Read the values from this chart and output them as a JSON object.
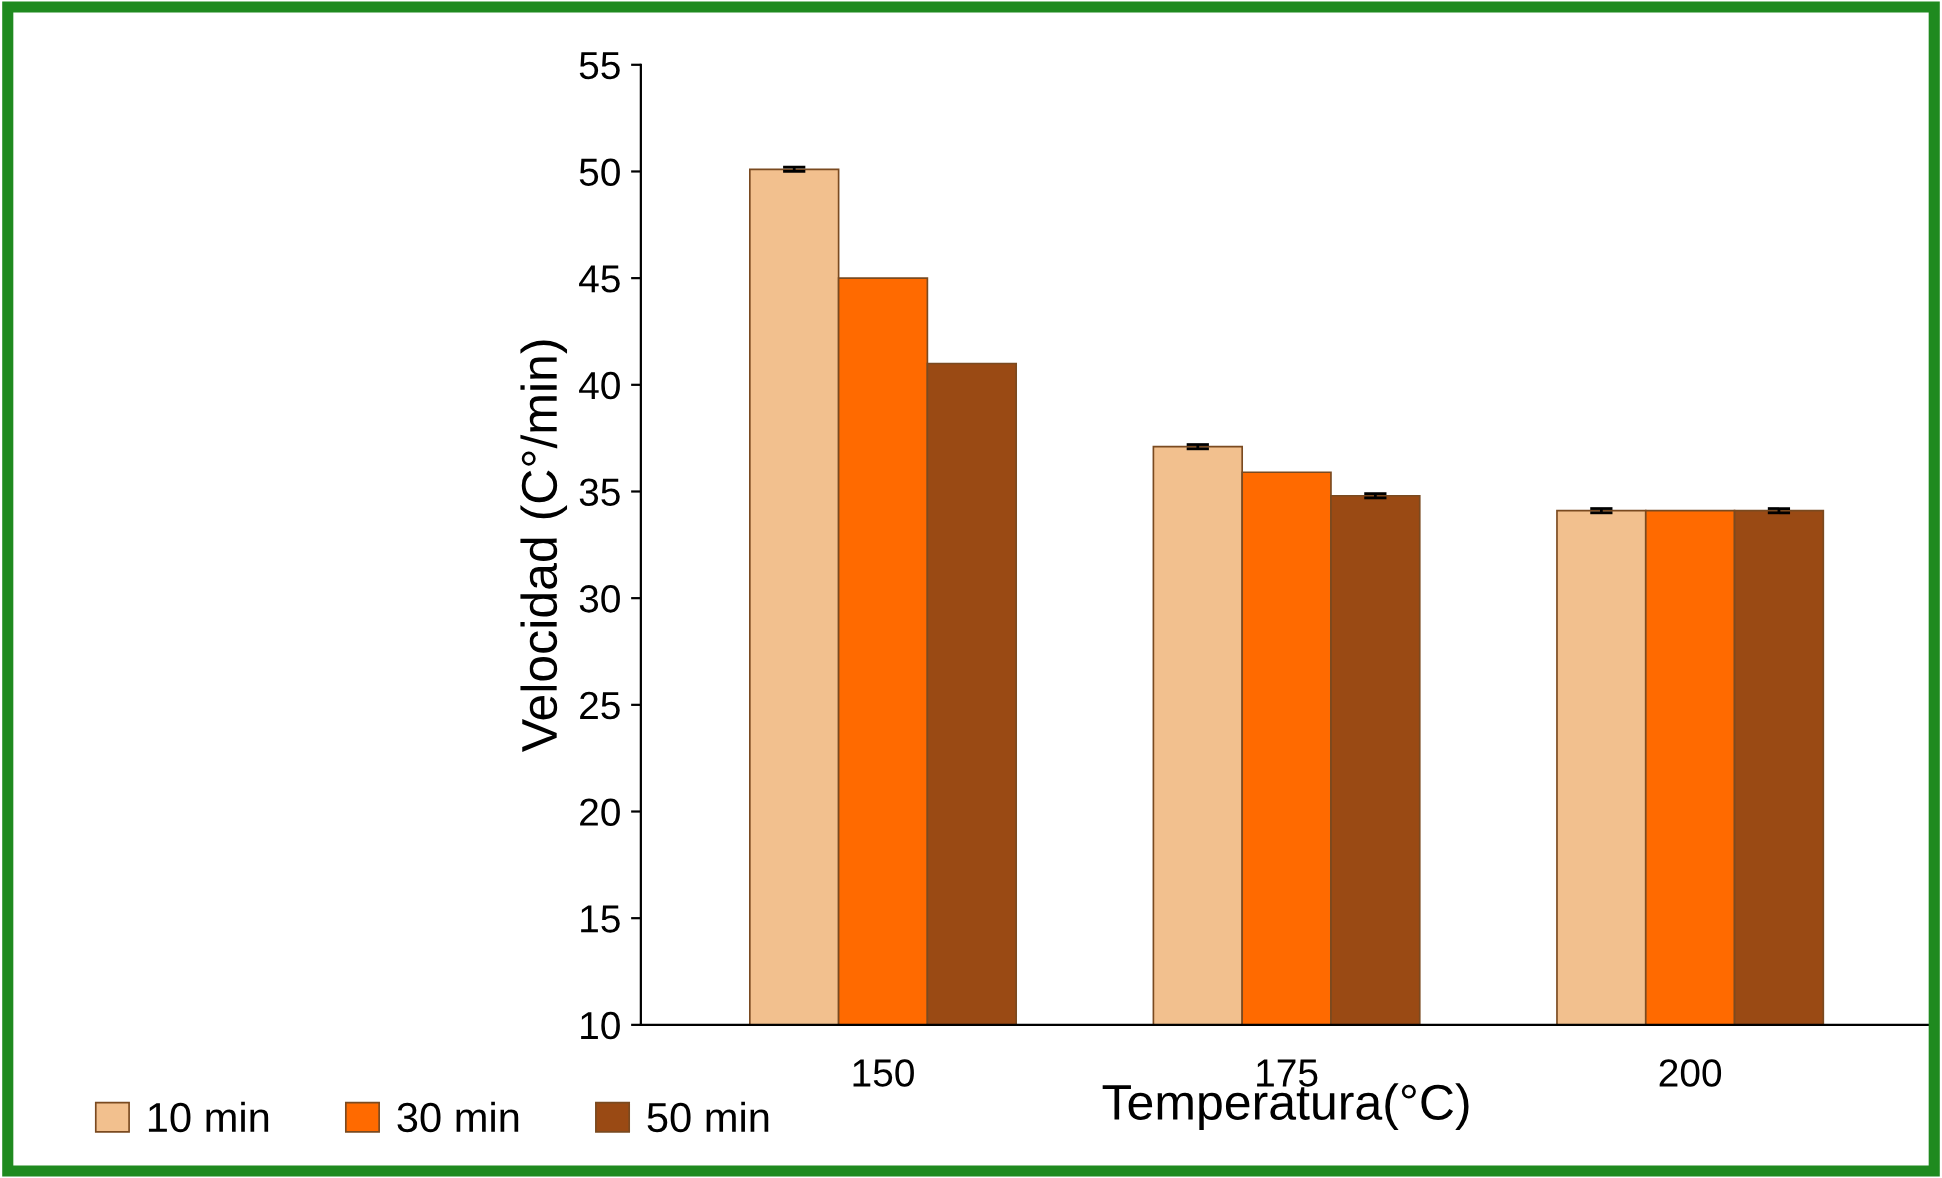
{
  "chart_data": {
    "type": "bar",
    "xlabel": "Temperatura(°C)",
    "ylabel": "Velocidad (C°/min)",
    "categories": [
      "150",
      "175",
      "200"
    ],
    "series": [
      {
        "name": "10 min",
        "color": "#f2c08e",
        "values": [
          50.1,
          37.1,
          34.1
        ],
        "errors": [
          0.1,
          0.1,
          0.1
        ]
      },
      {
        "name": "30 min",
        "color": "#ff6a00",
        "values": [
          45.0,
          35.9,
          34.1
        ]
      },
      {
        "name": "50 min",
        "color": "#9a4a14",
        "values": [
          41.0,
          34.8,
          34.1
        ],
        "errors": [
          null,
          0.1,
          0.1
        ]
      }
    ],
    "ylim": [
      10,
      55
    ],
    "yticks": [
      10,
      15,
      20,
      25,
      30,
      35,
      40,
      45,
      50,
      55
    ],
    "grid": false,
    "legend": "bottom left"
  }
}
